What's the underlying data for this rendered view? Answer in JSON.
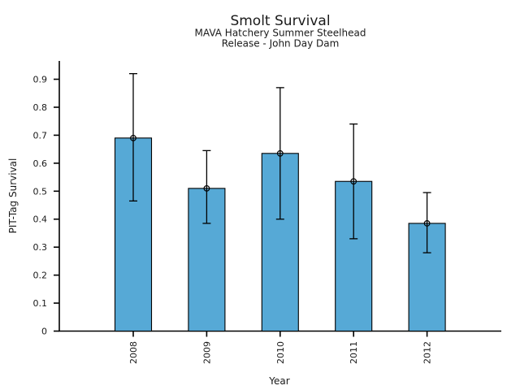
{
  "chart_data": {
    "type": "bar",
    "title": "Smolt Survival",
    "subtitle1": "MAVA Hatchery Summer Steelhead",
    "subtitle2": "Release - John Day Dam",
    "xlabel": "Year",
    "ylabel": "PIT-Tag Survival",
    "categories": [
      "2008",
      "2009",
      "2010",
      "2011",
      "2012"
    ],
    "values": [
      0.69,
      0.51,
      0.635,
      0.535,
      0.385
    ],
    "error_low": [
      0.465,
      0.385,
      0.4,
      0.33,
      0.28
    ],
    "error_high": [
      0.92,
      0.645,
      0.87,
      0.74,
      0.495
    ],
    "yticks": [
      0,
      0.1,
      0.2,
      0.3,
      0.4,
      0.5,
      0.6,
      0.7,
      0.8,
      0.9
    ],
    "ytick_labels": [
      "0",
      "0.1",
      "0.2",
      "0.3",
      "0.4",
      "0.5",
      "0.6",
      "0.7",
      "0.8",
      "0.9"
    ],
    "ylim": [
      0,
      0.965
    ],
    "grid": false,
    "legend": "none",
    "marker": "open-circle",
    "bar_color": "#56A9D6",
    "bar_edge_color": "#000000",
    "error_bar_color": "#000000",
    "axis_color": "#000000",
    "background_color": "#ffffff"
  }
}
